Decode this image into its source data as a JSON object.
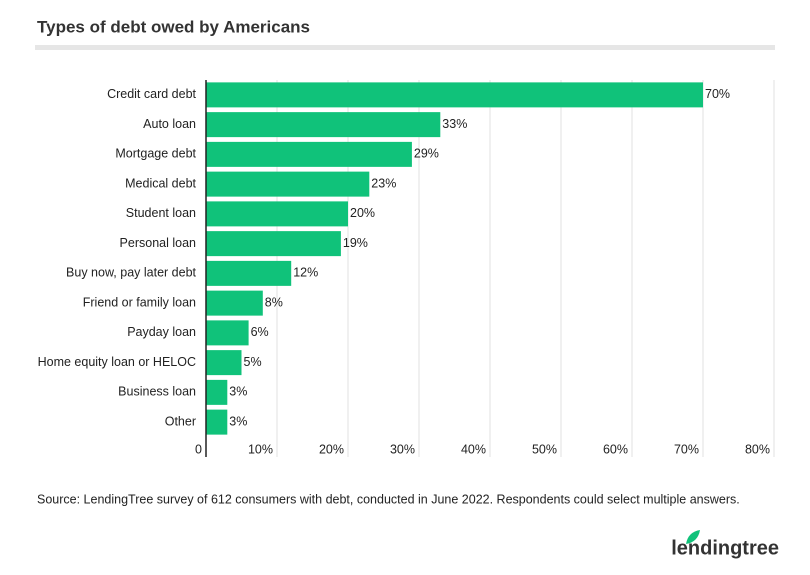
{
  "chart_data": {
    "type": "bar",
    "orientation": "horizontal",
    "title": "Types of debt owed by Americans",
    "categories": [
      "Credit card debt",
      "Auto loan",
      "Mortgage debt",
      "Medical debt",
      "Student loan",
      "Personal loan",
      "Buy now, pay later debt",
      "Friend or family loan",
      "Payday loan",
      "Home equity loan or HELOC",
      "Business loan",
      "Other"
    ],
    "values": [
      70,
      33,
      29,
      23,
      20,
      19,
      12,
      8,
      6,
      5,
      3,
      3
    ],
    "value_labels": [
      "70%",
      "33%",
      "29%",
      "23%",
      "20%",
      "19%",
      "12%",
      "8%",
      "6%",
      "5%",
      "3%",
      "3%"
    ],
    "color": "#10c27a",
    "xlim": [
      0,
      80
    ],
    "xticks": [
      0,
      {
        "value": 10,
        "label": "10%"
      },
      {
        "value": 20,
        "label": "20%"
      },
      {
        "value": 30,
        "label": "30%"
      },
      {
        "value": 40,
        "label": "40%"
      },
      {
        "value": 50,
        "label": "50%"
      },
      {
        "value": 60,
        "label": "60%"
      },
      {
        "value": 70,
        "label": "70%"
      },
      {
        "value": 80,
        "label": "80%"
      }
    ],
    "grid": true,
    "source": "Source: LendingTree survey of 612 consumers with debt, conducted in June 2022. Respondents could select multiple answers."
  },
  "logo": "lendingtree"
}
